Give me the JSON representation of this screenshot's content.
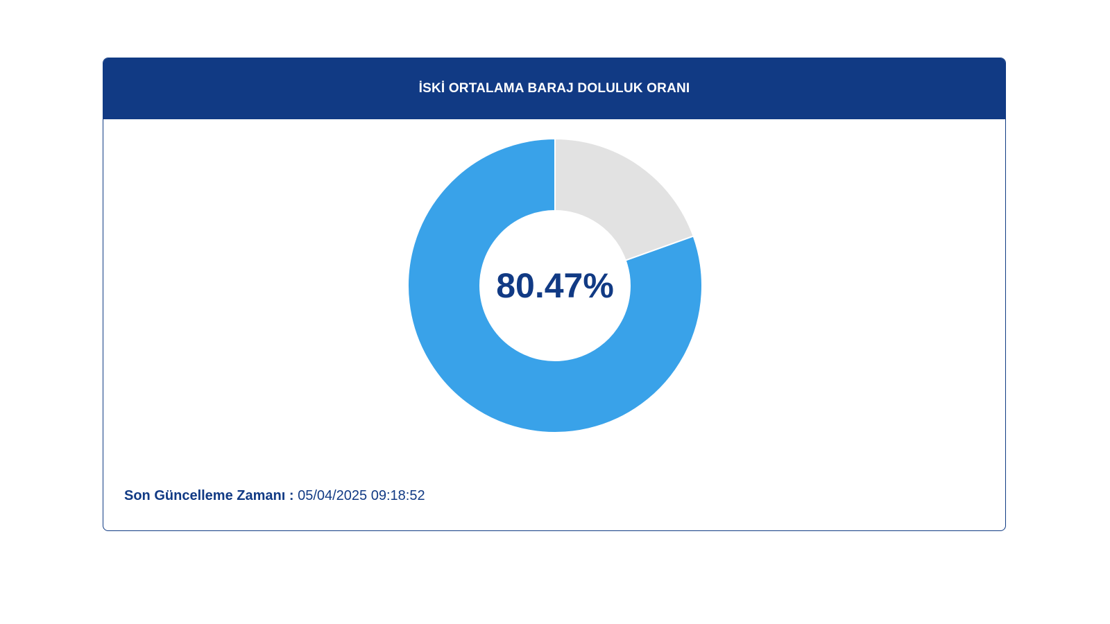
{
  "header": {
    "title": "İSKİ ORTALAMA BARAJ DOLULUK ORANI"
  },
  "colors": {
    "header_bg": "#113a84",
    "filled": "#39a2e9",
    "empty": "#e2e2e2",
    "text_dark": "#113a84"
  },
  "chart_data": {
    "type": "pie",
    "categories": [
      "filled",
      "empty"
    ],
    "values": [
      80.47,
      19.53
    ],
    "center_label": "80.47%"
  },
  "footer": {
    "label": "Son Güncelleme Zamanı :",
    "value": "05/04/2025 09:18:52"
  }
}
